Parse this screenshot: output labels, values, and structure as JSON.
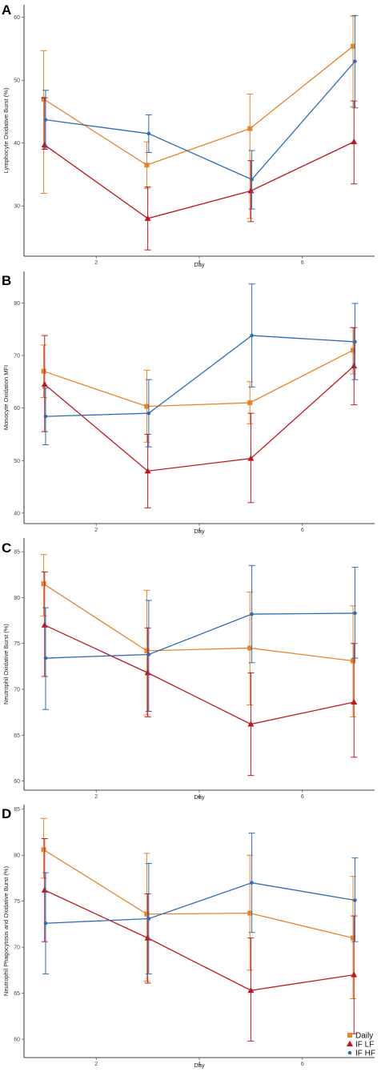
{
  "colors": {
    "Daily": "#E6842A",
    "IF LF": "#C0161E",
    "IF HF": "#2E6DB4",
    "axis": "#000000"
  },
  "legend": {
    "placement": "bottom-right",
    "entries": [
      {
        "name": "Daily",
        "marker": "square"
      },
      {
        "name": "IF LF",
        "marker": "triangle"
      },
      {
        "name": "IF HF",
        "marker": "circle"
      }
    ]
  },
  "chart_data": [
    {
      "panel": "A",
      "type": "line",
      "xlabel": "Day",
      "ylabel": "Lymphocyte Oxidative Burst (%)",
      "xlim": [
        0.6,
        7.4
      ],
      "ylim": [
        22,
        62
      ],
      "xticks": [
        2,
        4,
        6
      ],
      "yticks": [
        30,
        40,
        50,
        60
      ],
      "grid": false,
      "x": [
        1,
        3,
        5,
        7
      ],
      "series": [
        {
          "name": "Daily",
          "marker": "square",
          "values": [
            47.0,
            36.5,
            42.3,
            55.4
          ],
          "err_low": [
            32.0,
            32.8,
            28.0,
            45.8
          ],
          "err_high": [
            54.7,
            40.2,
            47.8,
            60.2
          ]
        },
        {
          "name": "IF LF",
          "marker": "triangle",
          "values": [
            39.7,
            28.0,
            32.4,
            40.2
          ],
          "err_low": [
            39.0,
            23.0,
            27.5,
            33.5
          ],
          "err_high": [
            47.2,
            33.0,
            37.2,
            46.7
          ]
        },
        {
          "name": "IF HF",
          "marker": "circle",
          "values": [
            43.7,
            41.5,
            34.2,
            53.0
          ],
          "err_low": [
            39.2,
            38.5,
            29.5,
            45.6
          ],
          "err_high": [
            48.4,
            44.5,
            38.8,
            60.3
          ]
        }
      ]
    },
    {
      "panel": "B",
      "type": "line",
      "xlabel": "Day",
      "ylabel": "Monocyte Oxidation MFI",
      "xlim": [
        0.6,
        7.4
      ],
      "ylim": [
        38,
        86
      ],
      "xticks": [
        2,
        4,
        6
      ],
      "yticks": [
        40,
        50,
        60,
        70,
        80
      ],
      "grid": false,
      "x": [
        1,
        3,
        5,
        7
      ],
      "series": [
        {
          "name": "Daily",
          "marker": "square",
          "values": [
            67.0,
            60.3,
            61.0,
            71.0
          ],
          "err_low": [
            62.0,
            53.5,
            57.0,
            66.5
          ],
          "err_high": [
            72.0,
            67.2,
            65.0,
            75.3
          ]
        },
        {
          "name": "IF LF",
          "marker": "triangle",
          "values": [
            64.5,
            48.0,
            50.4,
            68.0
          ],
          "err_low": [
            55.5,
            41.0,
            42.0,
            60.6
          ],
          "err_high": [
            73.8,
            55.0,
            59.0,
            75.3
          ]
        },
        {
          "name": "IF HF",
          "marker": "circle",
          "values": [
            58.4,
            59.0,
            73.8,
            72.6
          ],
          "err_low": [
            53.0,
            52.6,
            64.0,
            65.4
          ],
          "err_high": [
            63.8,
            65.4,
            83.6,
            79.9
          ]
        }
      ]
    },
    {
      "panel": "C",
      "type": "line",
      "xlabel": "Day",
      "ylabel": "Neutrophil Oxidative Burst (%)",
      "xlim": [
        0.6,
        7.4
      ],
      "ylim": [
        59,
        86.5
      ],
      "xticks": [
        2,
        4,
        6
      ],
      "yticks": [
        60,
        65,
        70,
        75,
        80,
        85
      ],
      "grid": false,
      "x": [
        1,
        3,
        5,
        7
      ],
      "series": [
        {
          "name": "Daily",
          "marker": "square",
          "values": [
            81.5,
            74.2,
            74.5,
            73.1
          ],
          "err_low": [
            78.0,
            67.2,
            68.3,
            67.0
          ],
          "err_high": [
            84.7,
            80.8,
            80.6,
            79.1
          ]
        },
        {
          "name": "IF LF",
          "marker": "triangle",
          "values": [
            77.0,
            71.8,
            66.2,
            68.6
          ],
          "err_low": [
            71.4,
            67.0,
            60.6,
            62.6
          ],
          "err_high": [
            82.8,
            76.7,
            71.8,
            75.0
          ]
        },
        {
          "name": "IF HF",
          "marker": "circle",
          "values": [
            73.4,
            73.8,
            78.2,
            78.3
          ],
          "err_low": [
            67.8,
            67.6,
            72.9,
            73.4
          ],
          "err_high": [
            78.9,
            79.7,
            83.5,
            83.3
          ]
        }
      ]
    },
    {
      "panel": "D",
      "type": "line",
      "xlabel": "Day",
      "ylabel": "Neutrophil Phagocytosis and Oxidative Burst (%)",
      "xlim": [
        0.6,
        7.4
      ],
      "ylim": [
        58,
        85.5
      ],
      "xticks": [
        2,
        4,
        6
      ],
      "yticks": [
        60,
        65,
        70,
        75,
        80,
        85
      ],
      "grid": false,
      "x": [
        1,
        3,
        5,
        7
      ],
      "series": [
        {
          "name": "Daily",
          "marker": "square",
          "values": [
            80.6,
            73.6,
            73.7,
            71.0
          ],
          "err_low": [
            77.5,
            66.3,
            67.5,
            64.4
          ],
          "err_high": [
            84.0,
            80.2,
            80.0,
            77.7
          ]
        },
        {
          "name": "IF LF",
          "marker": "triangle",
          "values": [
            76.2,
            71.0,
            65.3,
            67.0
          ],
          "err_low": [
            70.6,
            66.1,
            59.8,
            60.6
          ],
          "err_high": [
            81.8,
            75.8,
            71.0,
            73.4
          ]
        },
        {
          "name": "IF HF",
          "marker": "circle",
          "values": [
            72.6,
            73.1,
            77.0,
            75.1
          ],
          "err_low": [
            67.1,
            67.1,
            71.6,
            70.6
          ],
          "err_high": [
            78.1,
            79.1,
            82.4,
            79.7
          ]
        }
      ]
    }
  ]
}
